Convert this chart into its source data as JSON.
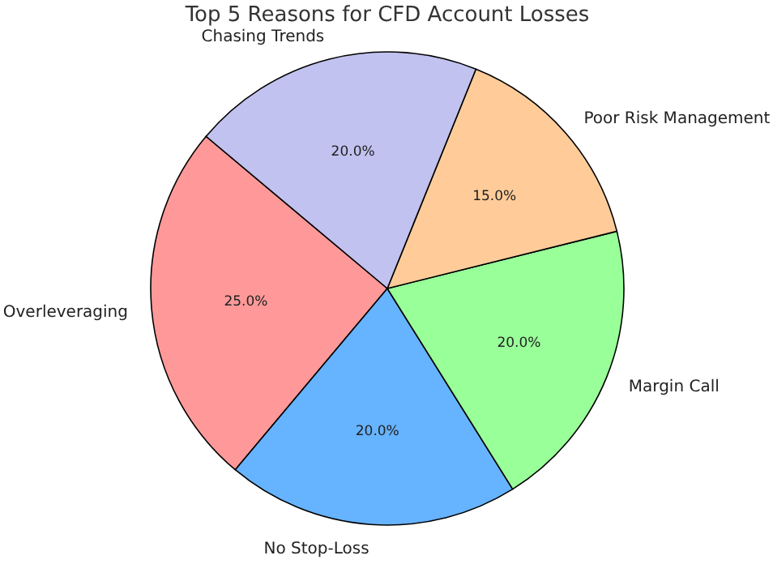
{
  "chart_data": {
    "type": "pie",
    "title": "Top 5 Reasons for CFD Account Losses",
    "categories": [
      "Overleveraging",
      "No Stop-Loss",
      "Margin Call",
      "Poor Risk Management",
      "Chasing Trends"
    ],
    "values": [
      25,
      20,
      20,
      15,
      20
    ],
    "colors": [
      "#ff9999",
      "#66b3ff",
      "#99ff99",
      "#ffcc99",
      "#c2c2f0"
    ],
    "value_labels": [
      "25.0%",
      "20.0%",
      "20.0%",
      "15.0%",
      "20.0%"
    ]
  }
}
